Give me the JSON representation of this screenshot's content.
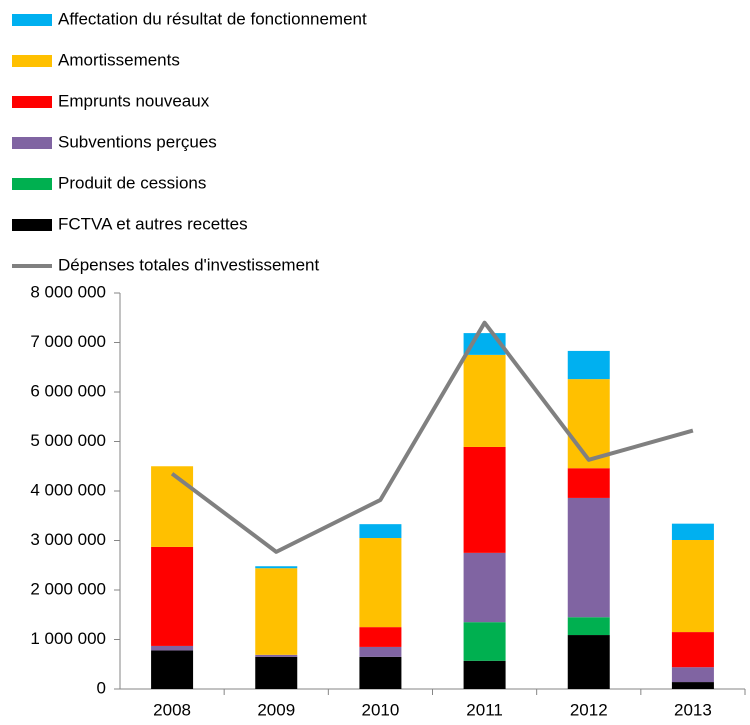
{
  "chart_data": {
    "type": "bar",
    "stacked": true,
    "categories": [
      "2008",
      "2009",
      "2010",
      "2011",
      "2012",
      "2013"
    ],
    "series": [
      {
        "name": "Affectation du résultat de fonctionnement",
        "color": "#00b0f0",
        "values": [
          0,
          40000,
          280000,
          440000,
          570000,
          330000
        ]
      },
      {
        "name": "Amortissements",
        "color": "#ffc000",
        "values": [
          1630000,
          1750000,
          1800000,
          1860000,
          1800000,
          1860000
        ]
      },
      {
        "name": "Emprunts nouveaux",
        "color": "#ff0000",
        "values": [
          2000000,
          0,
          400000,
          2140000,
          600000,
          710000
        ]
      },
      {
        "name": "Subventions perçues",
        "color": "#8064a2",
        "values": [
          90000,
          40000,
          200000,
          1400000,
          2410000,
          300000
        ]
      },
      {
        "name": "Produit de cessions",
        "color": "#00b050",
        "values": [
          0,
          0,
          0,
          780000,
          360000,
          0
        ]
      },
      {
        "name": "FCTVA et autres recettes",
        "color": "#000000",
        "values": [
          780000,
          650000,
          650000,
          570000,
          1090000,
          140000
        ]
      },
      {
        "name": "Dépenses totales d'investissement",
        "color": "#808080",
        "type": "line",
        "values": [
          4350000,
          2770000,
          3820000,
          7400000,
          4630000,
          5220000
        ]
      }
    ],
    "ylim": [
      0,
      8000000
    ],
    "yticks": [
      0,
      {
        "value": 1000000,
        "label": "1 000 000"
      },
      {
        "value": 2000000,
        "label": "2 000 000"
      },
      {
        "value": 3000000,
        "label": "3 000 000"
      },
      {
        "value": 4000000,
        "label": "4 000 000"
      },
      {
        "value": 5000000,
        "label": "5 000 000"
      },
      {
        "value": 6000000,
        "label": "6 000 000"
      },
      {
        "value": 7000000,
        "label": "7 000 000"
      },
      {
        "value": 8000000,
        "label": "8 000 000"
      }
    ],
    "grid": false
  }
}
